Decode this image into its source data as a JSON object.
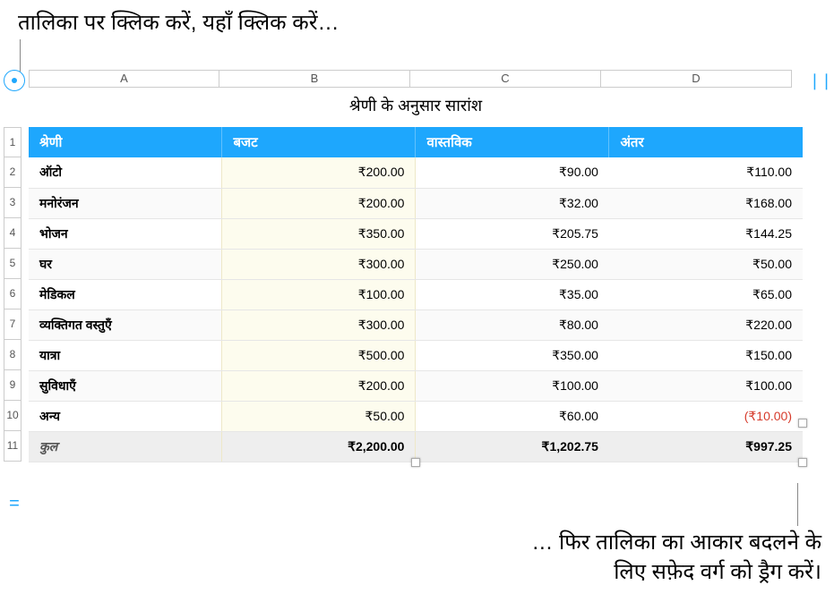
{
  "callouts": {
    "top": "तालिका पर क्लिक करें, यहाँ क्लिक करें…",
    "bottom_line1": "… फिर तालिका का आकार बदलने के",
    "bottom_line2": "लिए सफ़ेद वर्ग को ड्रैग करें।"
  },
  "col_add_glyph": "❘❘",
  "row_add_glyph": "=",
  "columns": {
    "labels": [
      "A",
      "B",
      "C",
      "D"
    ],
    "widths": [
      213,
      213,
      213,
      213
    ]
  },
  "row_labels": [
    "1",
    "2",
    "3",
    "4",
    "5",
    "6",
    "7",
    "8",
    "9",
    "10",
    "11"
  ],
  "table": {
    "title": "श्रेणी के अनुसार सारांश",
    "headers": [
      "श्रेणी",
      "बजट",
      "वास्तविक",
      "अंतर"
    ],
    "rows": [
      {
        "cat": "ऑटो",
        "budget": "₹200.00",
        "actual": "₹90.00",
        "diff": "₹110.00",
        "neg": false
      },
      {
        "cat": "मनोरंजन",
        "budget": "₹200.00",
        "actual": "₹32.00",
        "diff": "₹168.00",
        "neg": false
      },
      {
        "cat": "भोजन",
        "budget": "₹350.00",
        "actual": "₹205.75",
        "diff": "₹144.25",
        "neg": false
      },
      {
        "cat": "घर",
        "budget": "₹300.00",
        "actual": "₹250.00",
        "diff": "₹50.00",
        "neg": false
      },
      {
        "cat": "मेडिकल",
        "budget": "₹100.00",
        "actual": "₹35.00",
        "diff": "₹65.00",
        "neg": false
      },
      {
        "cat": "व्यक्तिगत वस्तुएँ",
        "budget": "₹300.00",
        "actual": "₹80.00",
        "diff": "₹220.00",
        "neg": false
      },
      {
        "cat": "यात्रा",
        "budget": "₹500.00",
        "actual": "₹350.00",
        "diff": "₹150.00",
        "neg": false
      },
      {
        "cat": "सुविधाएँ",
        "budget": "₹200.00",
        "actual": "₹100.00",
        "diff": "₹100.00",
        "neg": false
      },
      {
        "cat": "अन्य",
        "budget": "₹50.00",
        "actual": "₹60.00",
        "diff": "(₹10.00)",
        "neg": true
      }
    ],
    "total": {
      "cat": "कुल",
      "budget": "₹2,200.00",
      "actual": "₹1,202.75",
      "diff": "₹997.25"
    },
    "colors": {
      "header_bg": "#1ea7fd",
      "header_fg": "#ffffff",
      "budget_col_bg": "#fdfcee",
      "negative": "#d63b2b",
      "total_bg": "#eeeeee",
      "grid": "#e6e6e6"
    }
  }
}
